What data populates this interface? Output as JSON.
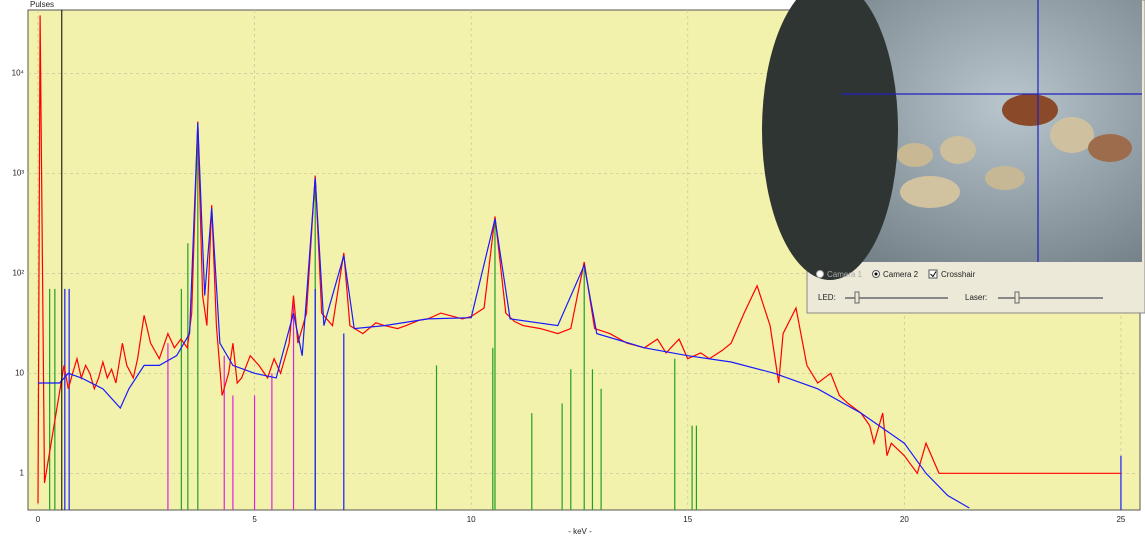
{
  "chart_data": {
    "type": "line",
    "ylabel": "Pulses",
    "xlabel": "- keV -",
    "log_y": true,
    "grid": true,
    "xlim": [
      -0.23,
      25.44
    ],
    "ylim": [
      0.43,
      43000
    ],
    "xticks": [
      0,
      5,
      10,
      15,
      20,
      25
    ],
    "yticks": [
      1,
      10,
      {
        "value": 100,
        "label": "10²"
      },
      {
        "value": 1000,
        "label": "10³"
      },
      {
        "value": 10000,
        "label": "10⁴"
      }
    ],
    "cursor_x": 0.55,
    "series": [
      {
        "kind": "line",
        "color": "#ff0000",
        "x": [
          0.0,
          0.05,
          0.15,
          0.6,
          0.7,
          0.8,
          0.9,
          1.0,
          1.1,
          1.2,
          1.3,
          1.4,
          1.5,
          1.6,
          1.7,
          1.8,
          1.95,
          2.05,
          2.2,
          2.3,
          2.45,
          2.6,
          2.8,
          3.0,
          3.15,
          3.3,
          3.45,
          3.55,
          3.69,
          3.8,
          3.9,
          4.01,
          4.12,
          4.25,
          4.4,
          4.5,
          4.6,
          4.7,
          4.9,
          5.1,
          5.3,
          5.45,
          5.6,
          5.8,
          5.9,
          6.0,
          6.2,
          6.4,
          6.55,
          6.8,
          7.06,
          7.2,
          7.5,
          7.8,
          8.0,
          8.3,
          8.5,
          8.8,
          9.0,
          9.3,
          9.5,
          9.8,
          10.0,
          10.3,
          10.55,
          10.8,
          11.0,
          11.2,
          11.6,
          12.0,
          12.3,
          12.61,
          12.85,
          13.2,
          13.6,
          14.0,
          14.3,
          14.5,
          14.8,
          15.0,
          15.3,
          15.5,
          15.8,
          16.0,
          16.3,
          16.6,
          16.9,
          17.1,
          17.2,
          17.5,
          17.75,
          18.0,
          18.3,
          18.5,
          18.7,
          19.0,
          19.2,
          19.3,
          19.5,
          19.6,
          19.7,
          20.0,
          20.3,
          20.5,
          20.8,
          21.0,
          21.5,
          22.0,
          22.5,
          23.0,
          23.5,
          24.0,
          24.5,
          25.0
        ],
        "values": [
          0.5,
          38000,
          0.8,
          12,
          7,
          10,
          14,
          9,
          12,
          10,
          7,
          9,
          13,
          9,
          11,
          8,
          20,
          12,
          9,
          14,
          38,
          20,
          14,
          25,
          18,
          22,
          18,
          40,
          3300,
          60,
          30,
          480,
          30,
          6,
          10,
          20,
          8,
          9,
          15,
          12,
          9,
          14,
          10,
          20,
          60,
          20,
          40,
          950,
          40,
          30,
          160,
          30,
          25,
          32,
          30,
          28,
          30,
          34,
          35,
          40,
          38,
          35,
          37,
          45,
          370,
          40,
          33,
          30,
          28,
          25,
          28,
          130,
          28,
          25,
          20,
          18,
          22,
          16,
          22,
          14,
          16,
          14,
          17,
          20,
          40,
          75,
          30,
          8,
          25,
          45,
          12,
          8,
          10,
          6,
          5,
          4,
          3,
          2,
          4,
          1.5,
          2,
          1.5,
          1,
          2,
          1,
          1,
          1,
          1,
          1,
          1,
          1,
          1,
          1,
          1
        ]
      },
      {
        "kind": "line",
        "color": "#1a1aff",
        "x": [
          0,
          0.5,
          0.7,
          1.0,
          1.5,
          1.9,
          2.1,
          2.45,
          2.8,
          3.2,
          3.5,
          3.69,
          3.85,
          4.01,
          4.2,
          4.5,
          5.0,
          5.5,
          5.9,
          6.1,
          6.4,
          6.6,
          7.06,
          7.3,
          8.0,
          9.0,
          10.0,
          10.55,
          10.9,
          12.0,
          12.61,
          12.9,
          14.0,
          15.0,
          16.0,
          17.0,
          18.0,
          19.0,
          20.0,
          20.5,
          21.0,
          21.5
        ],
        "values": [
          8,
          8,
          10,
          9,
          7,
          4.5,
          7,
          12,
          12,
          15,
          25,
          3200,
          60,
          450,
          20,
          12,
          10,
          9,
          40,
          15,
          900,
          30,
          150,
          28,
          30,
          35,
          36,
          350,
          35,
          30,
          120,
          25,
          18,
          15,
          13,
          10,
          7,
          4,
          2,
          1,
          0.6,
          0.45
        ]
      },
      {
        "kind": "stem",
        "color": "#22a022",
        "x": [
          0.27,
          0.39,
          3.31,
          3.46,
          3.69,
          6.4,
          9.2,
          10.5,
          10.55,
          11.4,
          12.1,
          12.3,
          12.61,
          12.8,
          13.0,
          14.7,
          15.1,
          15.2
        ],
        "values": [
          70,
          70,
          70,
          200,
          3000,
          900,
          12,
          18,
          350,
          4,
          5,
          11,
          110,
          11,
          7,
          14,
          3,
          3
        ]
      },
      {
        "kind": "stem",
        "color": "#e020e0",
        "x": [
          3.0,
          4.3,
          4.5,
          5.0,
          5.4,
          5.9
        ],
        "values": [
          20,
          15,
          6,
          6,
          10,
          50
        ]
      },
      {
        "kind": "stem",
        "color": "#1a1aff",
        "x": [
          0.62,
          0.72,
          6.4,
          7.06,
          25.0
        ],
        "values": [
          70,
          70,
          70,
          25,
          1.5
        ]
      }
    ]
  },
  "camera_panel": {
    "camera1": "Camera 1",
    "camera2": "Camera 2",
    "crosshair": "Crosshair",
    "led": "LED:",
    "laser": "Laser:"
  }
}
